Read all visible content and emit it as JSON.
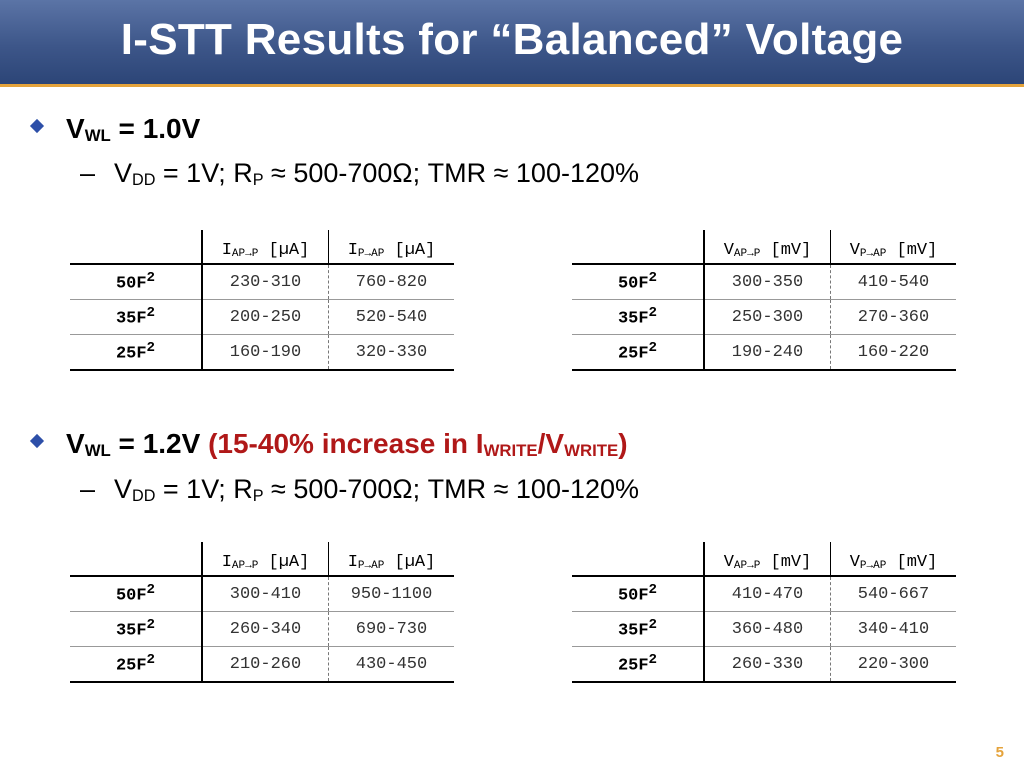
{
  "title": "I-STT Results for “Balanced” Voltage",
  "page_number": "5",
  "sections": [
    {
      "bullet": {
        "prefix": "V",
        "sub": "WL",
        "text": " = 1.0V",
        "highlight": {
          "a": "",
          "b": "",
          "c": "",
          "d": "",
          "e": ""
        }
      },
      "detail": {
        "a": "V",
        "b": "DD",
        "c": " = 1V; R",
        "d": "P",
        "e": " ≈ 500-700Ω; TMR ≈ 100-120%"
      },
      "current_table": {
        "h1": {
          "main": "I",
          "sub": "AP→P",
          "unit": " [µA]"
        },
        "h2": {
          "main": "I",
          "sub": "P→AP",
          "unit": " [µA]"
        },
        "rows": [
          {
            "label": "50F",
            "sup": "2",
            "v1": "230-310",
            "v2": "760-820"
          },
          {
            "label": "35F",
            "sup": "2",
            "v1": "200-250",
            "v2": "520-540"
          },
          {
            "label": "25F",
            "sup": "2",
            "v1": "160-190",
            "v2": "320-330"
          }
        ]
      },
      "voltage_table": {
        "h1": {
          "main": "V",
          "sub": "AP→P",
          "unit": " [mV]"
        },
        "h2": {
          "main": "V",
          "sub": "P→AP",
          "unit": " [mV]"
        },
        "rows": [
          {
            "label": "50F",
            "sup": "2",
            "v1": "300-350",
            "v2": "410-540"
          },
          {
            "label": "35F",
            "sup": "2",
            "v1": "250-300",
            "v2": "270-360"
          },
          {
            "label": "25F",
            "sup": "2",
            "v1": "190-240",
            "v2": "160-220"
          }
        ]
      }
    },
    {
      "bullet": {
        "prefix": "V",
        "sub": "WL",
        "text": " = 1.2V ",
        "highlight": {
          "a": "(15-40% increase in I",
          "b": "WRITE",
          "c": "/V",
          "d": "WRITE",
          "e": ")"
        }
      },
      "detail": {
        "a": "V",
        "b": "DD",
        "c": " = 1V; R",
        "d": "P",
        "e": " ≈ 500-700Ω; TMR ≈ 100-120%"
      },
      "current_table": {
        "h1": {
          "main": "I",
          "sub": "AP→P",
          "unit": " [µA]"
        },
        "h2": {
          "main": "I",
          "sub": "P→AP",
          "unit": " [µA]"
        },
        "rows": [
          {
            "label": "50F",
            "sup": "2",
            "v1": "300-410",
            "v2": "950-1100"
          },
          {
            "label": "35F",
            "sup": "2",
            "v1": "260-340",
            "v2": "690-730"
          },
          {
            "label": "25F",
            "sup": "2",
            "v1": "210-260",
            "v2": "430-450"
          }
        ]
      },
      "voltage_table": {
        "h1": {
          "main": "V",
          "sub": "AP→P",
          "unit": " [mV]"
        },
        "h2": {
          "main": "V",
          "sub": "P→AP",
          "unit": " [mV]"
        },
        "rows": [
          {
            "label": "50F",
            "sup": "2",
            "v1": "410-470",
            "v2": "540-667"
          },
          {
            "label": "35F",
            "sup": "2",
            "v1": "360-480",
            "v2": "340-410"
          },
          {
            "label": "25F",
            "sup": "2",
            "v1": "260-330",
            "v2": "220-300"
          }
        ]
      }
    }
  ]
}
